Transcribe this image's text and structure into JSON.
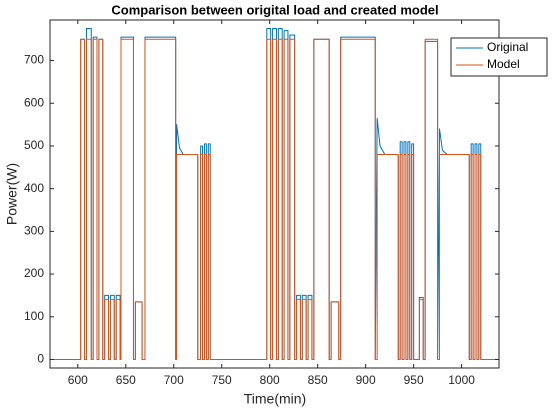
{
  "chart_data": {
    "type": "line",
    "title": "Comparison between origital load and created model",
    "x_label": "Time(min)",
    "y_label": "Power(W)",
    "xlim": [
      571,
      1039
    ],
    "ylim": [
      -20,
      795
    ],
    "xticks": [
      600,
      650,
      700,
      750,
      800,
      850,
      900,
      950,
      1000
    ],
    "yticks": [
      0,
      100,
      200,
      300,
      400,
      500,
      600,
      700
    ],
    "legend": "northeast",
    "series": [
      {
        "name": "Original",
        "color": "#0072bd",
        "x": [
          571,
          603,
          603,
          607,
          607,
          609,
          609,
          614,
          614,
          616,
          616,
          620,
          620,
          622,
          622,
          626,
          626,
          628,
          628,
          632,
          632,
          634,
          634,
          638,
          638,
          640,
          640,
          644,
          644,
          645,
          645,
          658,
          658,
          660,
          660,
          667,
          667,
          670,
          670,
          702,
          702,
          703,
          706,
          710,
          725,
          725,
          728,
          728,
          730,
          730,
          732,
          732,
          734,
          734,
          736,
          736,
          738,
          738,
          797,
          797,
          801,
          801,
          803,
          803,
          807,
          807,
          809,
          809,
          813,
          813,
          815,
          815,
          819,
          819,
          821,
          821,
          826,
          826,
          828,
          828,
          832,
          832,
          834,
          834,
          838,
          838,
          840,
          840,
          844,
          844,
          846,
          846,
          862,
          862,
          864,
          864,
          872,
          872,
          874,
          874,
          910,
          910,
          912,
          915,
          920,
          934,
          934,
          936,
          936,
          938,
          938,
          940,
          940,
          942,
          942,
          944,
          944,
          946,
          946,
          948,
          948,
          950,
          950,
          956,
          956,
          960,
          960,
          962,
          962,
          975,
          975,
          977,
          980,
          985,
          1008,
          1008,
          1010,
          1010,
          1012,
          1012,
          1014,
          1014,
          1016,
          1016,
          1018,
          1018,
          1020,
          1020,
          1039
        ],
        "values": [
          0,
          0,
          750,
          750,
          0,
          0,
          775,
          775,
          0,
          0,
          755,
          755,
          0,
          0,
          750,
          750,
          0,
          0,
          150,
          150,
          0,
          0,
          150,
          150,
          0,
          0,
          150,
          150,
          0,
          0,
          755,
          755,
          0,
          0,
          135,
          135,
          0,
          0,
          755,
          755,
          0,
          550,
          495,
          480,
          480,
          0,
          0,
          500,
          500,
          0,
          0,
          505,
          505,
          0,
          0,
          505,
          505,
          0,
          0,
          775,
          775,
          0,
          0,
          775,
          775,
          0,
          0,
          775,
          775,
          0,
          0,
          770,
          770,
          0,
          0,
          760,
          760,
          0,
          0,
          150,
          150,
          0,
          0,
          150,
          150,
          0,
          0,
          150,
          150,
          0,
          0,
          750,
          750,
          0,
          0,
          135,
          135,
          0,
          0,
          755,
          755,
          0,
          565,
          500,
          480,
          480,
          0,
          0,
          510,
          510,
          0,
          0,
          510,
          510,
          0,
          0,
          510,
          510,
          0,
          0,
          505,
          505,
          0,
          0,
          145,
          145,
          0,
          0,
          745,
          745,
          0,
          540,
          490,
          480,
          480,
          0,
          0,
          505,
          505,
          0,
          0,
          505,
          505,
          0,
          0,
          505,
          505,
          0,
          0
        ]
      },
      {
        "name": "Model",
        "color": "#d95319",
        "x": [
          571,
          603,
          603,
          607,
          607,
          609,
          609,
          614,
          614,
          616,
          616,
          620,
          620,
          622,
          622,
          626,
          626,
          628,
          628,
          632,
          632,
          634,
          634,
          638,
          638,
          640,
          640,
          644,
          644,
          645,
          645,
          658,
          658,
          660,
          660,
          667,
          667,
          670,
          670,
          702,
          702,
          703,
          703,
          725,
          725,
          728,
          728,
          730,
          730,
          732,
          732,
          734,
          734,
          736,
          736,
          738,
          738,
          797,
          797,
          801,
          801,
          803,
          803,
          807,
          807,
          809,
          809,
          813,
          813,
          815,
          815,
          819,
          819,
          821,
          821,
          826,
          826,
          828,
          828,
          832,
          832,
          834,
          834,
          838,
          838,
          840,
          840,
          844,
          844,
          846,
          846,
          862,
          862,
          864,
          864,
          872,
          872,
          874,
          874,
          910,
          910,
          912,
          912,
          934,
          934,
          936,
          936,
          938,
          938,
          940,
          940,
          942,
          942,
          944,
          944,
          946,
          946,
          948,
          948,
          950,
          950,
          956,
          956,
          960,
          960,
          962,
          962,
          975,
          975,
          977,
          977,
          1008,
          1008,
          1010,
          1010,
          1012,
          1012,
          1014,
          1014,
          1016,
          1016,
          1018,
          1018,
          1020,
          1020,
          1039
        ],
        "values": [
          0,
          0,
          750,
          750,
          0,
          0,
          750,
          750,
          0,
          0,
          750,
          750,
          0,
          0,
          750,
          750,
          0,
          0,
          140,
          140,
          0,
          0,
          140,
          140,
          0,
          0,
          140,
          140,
          0,
          0,
          750,
          750,
          0,
          0,
          135,
          135,
          0,
          0,
          750,
          750,
          0,
          0,
          480,
          480,
          0,
          0,
          480,
          480,
          0,
          0,
          480,
          480,
          0,
          0,
          480,
          480,
          0,
          0,
          750,
          750,
          0,
          0,
          750,
          750,
          0,
          0,
          750,
          750,
          0,
          0,
          750,
          750,
          0,
          0,
          750,
          750,
          0,
          0,
          140,
          140,
          0,
          0,
          140,
          140,
          0,
          0,
          140,
          140,
          0,
          0,
          750,
          750,
          0,
          0,
          135,
          135,
          0,
          0,
          750,
          750,
          0,
          0,
          480,
          480,
          0,
          0,
          480,
          480,
          0,
          0,
          480,
          480,
          0,
          0,
          480,
          480,
          0,
          0,
          480,
          480,
          0,
          0,
          140,
          140,
          0,
          0,
          750,
          750,
          0,
          0,
          480,
          480,
          0,
          0,
          480,
          480,
          0,
          0,
          480,
          480,
          0,
          0,
          480,
          480,
          0,
          0
        ]
      }
    ]
  }
}
